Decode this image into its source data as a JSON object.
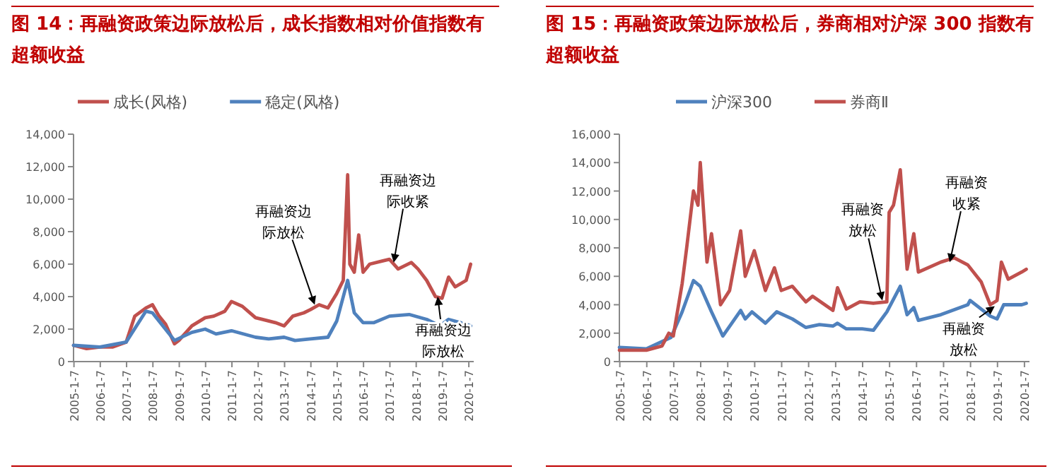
{
  "chart_data": [
    {
      "type": "line",
      "title": "图 14：再融资政策边际放松后，成长指数相对价值指数有超额收益",
      "legend": "top",
      "grid": false,
      "ylim": [
        0,
        14000
      ],
      "yticks": [
        {
          "value": 0,
          "label": "0"
        },
        {
          "value": 2000,
          "label": "2,000"
        },
        {
          "value": 4000,
          "label": "4,000"
        },
        {
          "value": 6000,
          "label": "6,000"
        },
        {
          "value": 8000,
          "label": "8,000"
        },
        {
          "value": 10000,
          "label": "10,000"
        },
        {
          "value": 12000,
          "label": "12,000"
        },
        {
          "value": 14000,
          "label": "14,000"
        }
      ],
      "xlim": [
        "2005-01-01",
        "2020-03-15"
      ],
      "xticks": [
        {
          "value": "2005-01-07",
          "label": "2005-1-7"
        },
        {
          "value": "2006-01-07",
          "label": "2006-1-7"
        },
        {
          "value": "2007-01-07",
          "label": "2007-1-7"
        },
        {
          "value": "2008-01-07",
          "label": "2008-1-7"
        },
        {
          "value": "2009-01-07",
          "label": "2009-1-7"
        },
        {
          "value": "2010-01-07",
          "label": "2010-1-7"
        },
        {
          "value": "2011-01-07",
          "label": "2011-1-7"
        },
        {
          "value": "2012-01-07",
          "label": "2012-1-7"
        },
        {
          "value": "2013-01-07",
          "label": "2013-1-7"
        },
        {
          "value": "2014-01-07",
          "label": "2014-1-7"
        },
        {
          "value": "2015-01-07",
          "label": "2015-1-7"
        },
        {
          "value": "2016-01-07",
          "label": "2016-1-7"
        },
        {
          "value": "2017-01-07",
          "label": "2017-1-7"
        },
        {
          "value": "2018-01-07",
          "label": "2018-1-7"
        },
        {
          "value": "2019-01-07",
          "label": "2019-1-7"
        },
        {
          "value": "2020-01-07",
          "label": "2020-1-7"
        }
      ],
      "series": [
        {
          "name": "成长(风格)",
          "color": "#c0504d",
          "x": [
            "2005-01",
            "2005-07",
            "2006-01",
            "2006-07",
            "2007-01",
            "2007-05",
            "2007-10",
            "2008-01",
            "2008-04",
            "2008-07",
            "2008-11",
            "2009-01",
            "2009-07",
            "2010-01",
            "2010-05",
            "2010-10",
            "2011-01",
            "2011-06",
            "2011-12",
            "2012-03",
            "2012-09",
            "2013-01",
            "2013-05",
            "2013-10",
            "2014-01",
            "2014-05",
            "2014-09",
            "2015-01",
            "2015-04",
            "2015-06",
            "2015-07",
            "2015-09",
            "2015-11",
            "2016-01",
            "2016-04",
            "2016-10",
            "2017-01",
            "2017-05",
            "2017-11",
            "2018-02",
            "2018-06",
            "2018-10",
            "2019-01",
            "2019-04",
            "2019-07",
            "2019-12",
            "2020-02"
          ],
          "values": [
            1000,
            800,
            900,
            900,
            1200,
            2800,
            3300,
            3500,
            2800,
            2300,
            1100,
            1300,
            2200,
            2700,
            2800,
            3100,
            3700,
            3400,
            2700,
            2600,
            2400,
            2200,
            2800,
            3000,
            3200,
            3500,
            3300,
            4200,
            5000,
            11500,
            6000,
            5500,
            7800,
            5500,
            6000,
            6200,
            6300,
            5700,
            6100,
            5700,
            5000,
            4000,
            3900,
            5200,
            4600,
            5000,
            6000
          ]
        },
        {
          "name": "稳定(风格)",
          "color": "#4f81bd",
          "x": [
            "2005-01",
            "2006-01",
            "2007-01",
            "2007-10",
            "2008-01",
            "2008-11",
            "2009-07",
            "2010-01",
            "2010-06",
            "2011-01",
            "2011-12",
            "2012-06",
            "2013-01",
            "2013-06",
            "2014-01",
            "2014-09",
            "2015-01",
            "2015-06",
            "2015-09",
            "2016-01",
            "2016-06",
            "2017-01",
            "2017-10",
            "2018-06",
            "2018-12",
            "2019-04",
            "2019-12",
            "2020-02"
          ],
          "values": [
            1000,
            900,
            1200,
            3100,
            3000,
            1300,
            1800,
            2000,
            1700,
            1900,
            1500,
            1400,
            1500,
            1300,
            1400,
            1500,
            2500,
            5000,
            3000,
            2400,
            2400,
            2800,
            2900,
            2600,
            2200,
            2600,
            2300,
            2200
          ]
        }
      ],
      "annotations": [
        {
          "text": "再融资边际放松",
          "x": "2014-03",
          "y": 3500
        },
        {
          "text": "再融资边际收紧",
          "x": "2017-03",
          "y": 6100
        },
        {
          "text": "再融资边际放松",
          "x": "2018-11",
          "y": 4000
        }
      ]
    },
    {
      "type": "line",
      "title": "图 15：再融资政策边际放松后，券商相对沪深 300 指数有超额收益",
      "legend": "top",
      "grid": false,
      "ylim": [
        0,
        16000
      ],
      "yticks": [
        {
          "value": 0,
          "label": "0"
        },
        {
          "value": 2000,
          "label": "2,000"
        },
        {
          "value": 4000,
          "label": "4,000"
        },
        {
          "value": 6000,
          "label": "6,000"
        },
        {
          "value": 8000,
          "label": "8,000"
        },
        {
          "value": 10000,
          "label": "10,000"
        },
        {
          "value": 12000,
          "label": "12,000"
        },
        {
          "value": 14000,
          "label": "14,000"
        },
        {
          "value": 16000,
          "label": "16,000"
        }
      ],
      "xlim": [
        "2005-01-01",
        "2020-03-15"
      ],
      "xticks": [
        {
          "value": "2005-01-07",
          "label": "2005-1-7"
        },
        {
          "value": "2006-01-07",
          "label": "2006-1-7"
        },
        {
          "value": "2007-01-07",
          "label": "2007-1-7"
        },
        {
          "value": "2008-01-07",
          "label": "2008-1-7"
        },
        {
          "value": "2009-01-07",
          "label": "2009-1-7"
        },
        {
          "value": "2010-01-07",
          "label": "2010-1-7"
        },
        {
          "value": "2011-01-07",
          "label": "2011-1-7"
        },
        {
          "value": "2012-01-07",
          "label": "2012-1-7"
        },
        {
          "value": "2013-01-07",
          "label": "2013-1-7"
        },
        {
          "value": "2014-01-07",
          "label": "2014-1-7"
        },
        {
          "value": "2015-01-07",
          "label": "2015-1-7"
        },
        {
          "value": "2016-01-07",
          "label": "2016-1-7"
        },
        {
          "value": "2017-01-07",
          "label": "2017-1-7"
        },
        {
          "value": "2018-01-07",
          "label": "2018-1-7"
        },
        {
          "value": "2019-01-07",
          "label": "2019-1-7"
        },
        {
          "value": "2020-01-07",
          "label": "2020-1-7"
        }
      ],
      "series": [
        {
          "name": "沪深300",
          "color": "#4f81bd",
          "x": [
            "2005-01",
            "2006-01",
            "2006-12",
            "2007-05",
            "2007-10",
            "2008-01",
            "2008-06",
            "2008-11",
            "2009-07",
            "2009-09",
            "2009-12",
            "2010-06",
            "2010-11",
            "2011-06",
            "2011-12",
            "2012-06",
            "2012-12",
            "2013-02",
            "2013-06",
            "2014-01",
            "2014-06",
            "2014-12",
            "2015-06",
            "2015-09",
            "2015-12",
            "2016-02",
            "2016-12",
            "2017-12",
            "2018-01",
            "2018-10",
            "2019-01",
            "2019-04",
            "2019-12",
            "2020-02"
          ],
          "values": [
            1000,
            900,
            1700,
            3500,
            5700,
            5300,
            3500,
            1800,
            3600,
            3000,
            3500,
            2700,
            3500,
            3000,
            2400,
            2600,
            2500,
            2700,
            2300,
            2300,
            2200,
            3500,
            5300,
            3300,
            3800,
            2900,
            3300,
            4000,
            4300,
            3200,
            3000,
            4000,
            4000,
            4100
          ]
        },
        {
          "name": "券商Ⅱ",
          "color": "#c0504d",
          "x": [
            "2005-01",
            "2006-01",
            "2006-08",
            "2006-11",
            "2007-01",
            "2007-05",
            "2007-07",
            "2007-10",
            "2007-12",
            "2008-01",
            "2008-04",
            "2008-06",
            "2008-10",
            "2009-02",
            "2009-07",
            "2009-09",
            "2010-01",
            "2010-06",
            "2010-10",
            "2011-01",
            "2011-06",
            "2011-12",
            "2012-03",
            "2012-12",
            "2013-02",
            "2013-06",
            "2013-12",
            "2014-06",
            "2014-12",
            "2015-01",
            "2015-03",
            "2015-06",
            "2015-09",
            "2015-12",
            "2016-02",
            "2016-12",
            "2017-06",
            "2017-12",
            "2018-06",
            "2018-10",
            "2019-01",
            "2019-03",
            "2019-06",
            "2019-12",
            "2020-02"
          ],
          "values": [
            800,
            800,
            1100,
            2000,
            1800,
            5500,
            8000,
            12000,
            11000,
            14000,
            7000,
            9000,
            4000,
            5000,
            9200,
            6000,
            7800,
            5000,
            6600,
            5000,
            5300,
            4200,
            4600,
            3600,
            5200,
            3700,
            4200,
            4100,
            4200,
            10500,
            11000,
            13500,
            6500,
            9000,
            6300,
            7000,
            7300,
            6800,
            5600,
            4000,
            4300,
            7000,
            5800,
            6300,
            6500
          ]
        }
      ],
      "annotations": [
        {
          "text": "再融资放松",
          "x": "2014-10",
          "y": 4300
        },
        {
          "text": "再融资收紧",
          "x": "2017-04",
          "y": 7000
        },
        {
          "text": "再融资放松",
          "x": "2018-12",
          "y": 3900
        }
      ]
    }
  ]
}
